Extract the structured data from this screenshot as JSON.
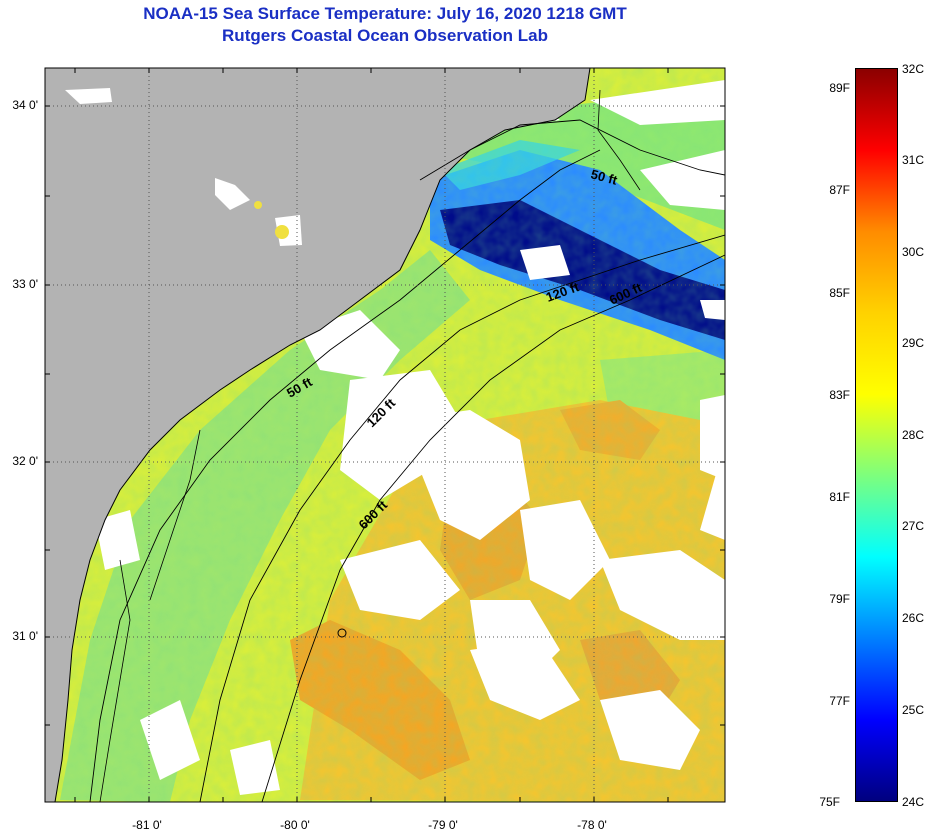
{
  "header": {
    "title": "NOAA-15 Sea Surface Temperature:  July 16, 2020 1218 GMT",
    "subtitle": "Rutgers Coastal Ocean Observation Lab"
  },
  "axes": {
    "lat_ticks": [
      "34 0'",
      "33 0'",
      "32 0'",
      "31 0'"
    ],
    "lon_ticks": [
      "-81 0'",
      "-80 0'",
      "-79 0'",
      "-78 0'"
    ]
  },
  "isobaths": [
    "50 ft",
    "120 ft",
    "600 ft"
  ],
  "colorbar": {
    "f_ticks": [
      "89F",
      "87F",
      "85F",
      "83F",
      "81F",
      "79F",
      "77F",
      "75F"
    ],
    "c_ticks": [
      "32C",
      "31C",
      "30C",
      "29C",
      "28C",
      "27C",
      "26C",
      "25C",
      "24C"
    ],
    "stops": [
      "#8b0000",
      "#ff0000",
      "#ff8c00",
      "#ffd200",
      "#ffff00",
      "#7dff7d",
      "#00ffff",
      "#0080ff",
      "#0000ff",
      "#00007f"
    ]
  },
  "colors": {
    "land": "#b4b4b4",
    "cloud": "#ffffff",
    "title": "#1a2fc4",
    "sst_cold": "#000a8c",
    "sst_cool": "#1e6cff",
    "sst_mid": "#8fe86a",
    "sst_warm": "#f0e830",
    "sst_hot": "#f5a21e"
  }
}
